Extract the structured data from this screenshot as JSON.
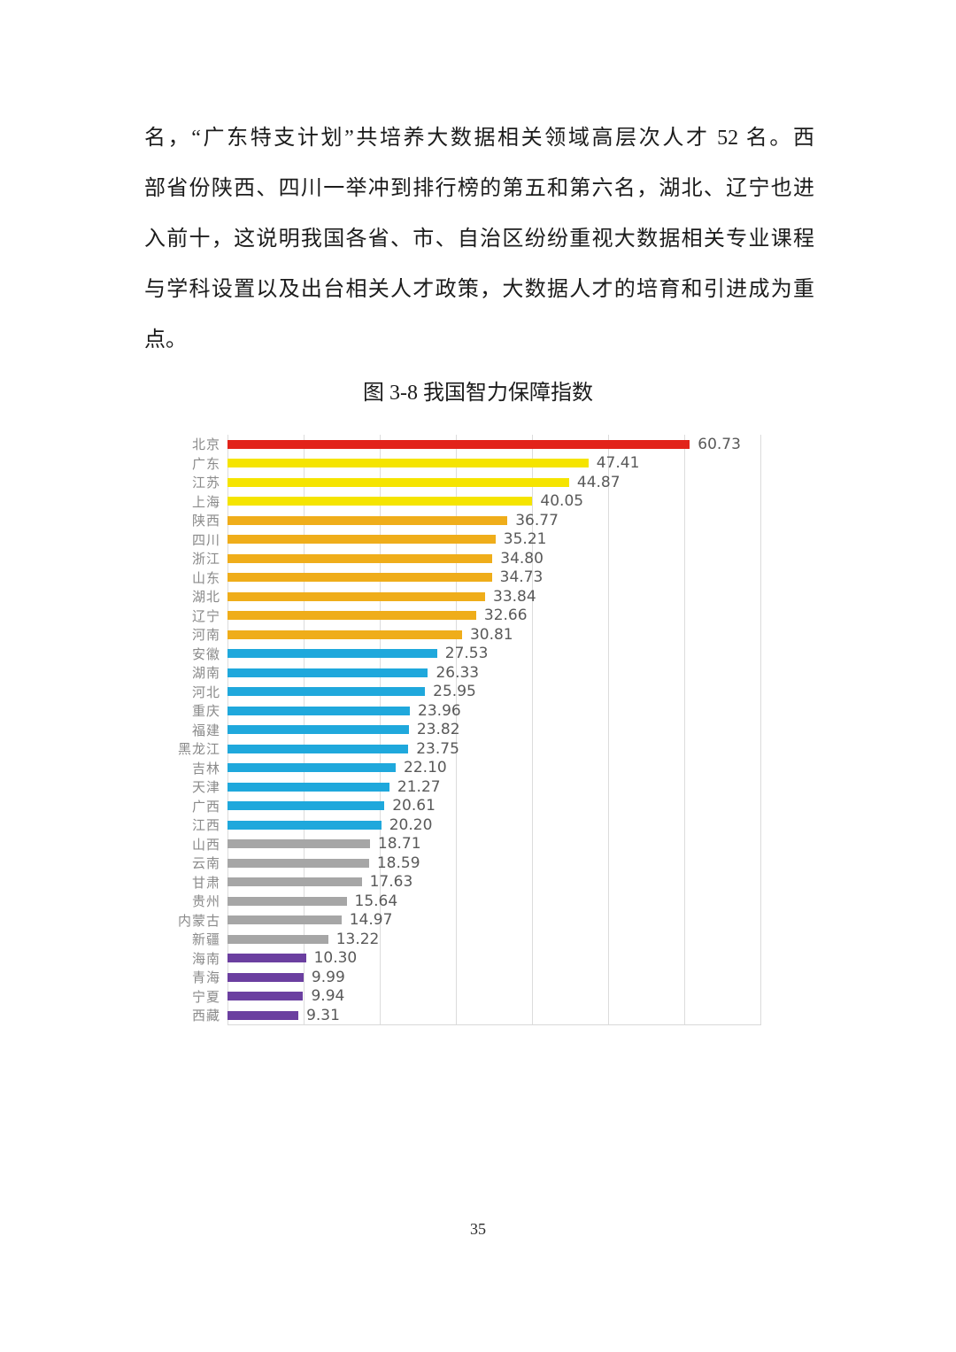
{
  "page": {
    "number": "35"
  },
  "paragraph": {
    "lines": [
      "名，“广东特支计划”共培养大数据相关领域高层次人才 52 名。西",
      "部省份陕西、四川一举冲到排行榜的第五和第六名，湖北、辽宁也进",
      "入前十，这说明我国各省、市、自治区纷纷重视大数据相关专业课程",
      "与学科设置以及出台相关人才政策，大数据人才的培育和引进成为重",
      "点。"
    ]
  },
  "figure": {
    "caption": "图 3-8  我国智力保障指数"
  },
  "chart_data": {
    "type": "bar",
    "orientation": "horizontal",
    "title": "图 3-8 我国智力保障指数",
    "categories": [
      "北京",
      "广东",
      "江苏",
      "上海",
      "陕西",
      "四川",
      "浙江",
      "山东",
      "湖北",
      "辽宁",
      "河南",
      "安徽",
      "湖南",
      "河北",
      "重庆",
      "福建",
      "黑龙江",
      "吉林",
      "天津",
      "广西",
      "江西",
      "山西",
      "云南",
      "甘肃",
      "贵州",
      "内蒙古",
      "新疆",
      "海南",
      "青海",
      "宁夏",
      "西藏"
    ],
    "values": [
      60.73,
      47.41,
      44.87,
      40.05,
      36.77,
      35.21,
      34.8,
      34.73,
      33.84,
      32.66,
      30.81,
      27.53,
      26.33,
      25.95,
      23.96,
      23.82,
      23.75,
      22.1,
      21.27,
      20.61,
      20.2,
      18.71,
      18.59,
      17.63,
      15.64,
      14.97,
      13.22,
      10.3,
      9.99,
      9.94,
      9.31
    ],
    "bar_colors": [
      "#e2231a",
      "#f5e400",
      "#f5e400",
      "#f5e400",
      "#efad1a",
      "#efad1a",
      "#efad1a",
      "#efad1a",
      "#efad1a",
      "#efad1a",
      "#efad1a",
      "#1fa8dc",
      "#1fa8dc",
      "#1fa8dc",
      "#1fa8dc",
      "#1fa8dc",
      "#1fa8dc",
      "#1fa8dc",
      "#1fa8dc",
      "#1fa8dc",
      "#1fa8dc",
      "#a6a6a6",
      "#a6a6a6",
      "#a6a6a6",
      "#a6a6a6",
      "#a6a6a6",
      "#a6a6a6",
      "#6b3fa0",
      "#6b3fa0",
      "#6b3fa0",
      "#6b3fa0"
    ],
    "xlim": [
      0,
      70
    ],
    "gridline_interval": 10,
    "grid": true,
    "legend": false,
    "data_labels": true,
    "gridline_color": "#dcdcdc",
    "value_label_color": "#595959",
    "category_label_color": "#8a8a8a"
  }
}
